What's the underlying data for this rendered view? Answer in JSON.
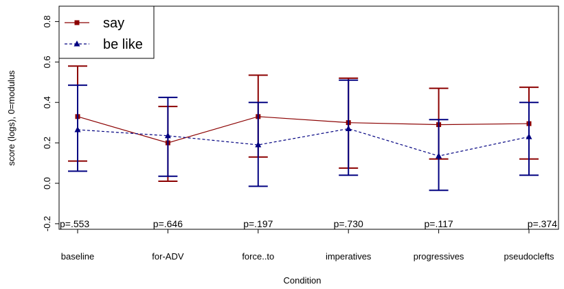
{
  "chart_data": {
    "type": "line",
    "title": "",
    "xlabel": "Condition",
    "ylabel": "score (logs), 0=modulus",
    "ylim": [
      -0.2,
      0.8
    ],
    "yticks": [
      -0.2,
      0.0,
      0.2,
      0.4,
      0.6,
      0.8
    ],
    "ytick_labels": [
      "-0.2",
      "0.0",
      "0.2",
      "0.4",
      "0.6",
      "0.8"
    ],
    "grid": false,
    "legend_position": "top-left",
    "categories": [
      "baseline",
      "for-ADV",
      "force..to",
      "imperatives",
      "progressives",
      "pseudoclefts"
    ],
    "series": [
      {
        "name": "say",
        "color": "#8b0000",
        "line_style": "solid",
        "marker": "square",
        "values": [
          0.33,
          0.2,
          0.33,
          0.3,
          0.29,
          0.295
        ],
        "lower": [
          0.11,
          0.01,
          0.13,
          0.075,
          0.12,
          0.12
        ],
        "upper": [
          0.58,
          0.38,
          0.535,
          0.52,
          0.47,
          0.475
        ]
      },
      {
        "name": "be like",
        "color": "#000080",
        "line_style": "dashed",
        "marker": "triangle",
        "values": [
          0.265,
          0.235,
          0.19,
          0.27,
          0.135,
          0.23
        ],
        "lower": [
          0.06,
          0.035,
          -0.015,
          0.04,
          -0.035,
          0.04
        ],
        "upper": [
          0.485,
          0.425,
          0.4,
          0.51,
          0.315,
          0.4
        ]
      }
    ],
    "annotations": [
      "p=.553",
      "p=.646",
      "p=.197",
      "p=.730",
      "p=.117",
      "p=.374"
    ]
  }
}
